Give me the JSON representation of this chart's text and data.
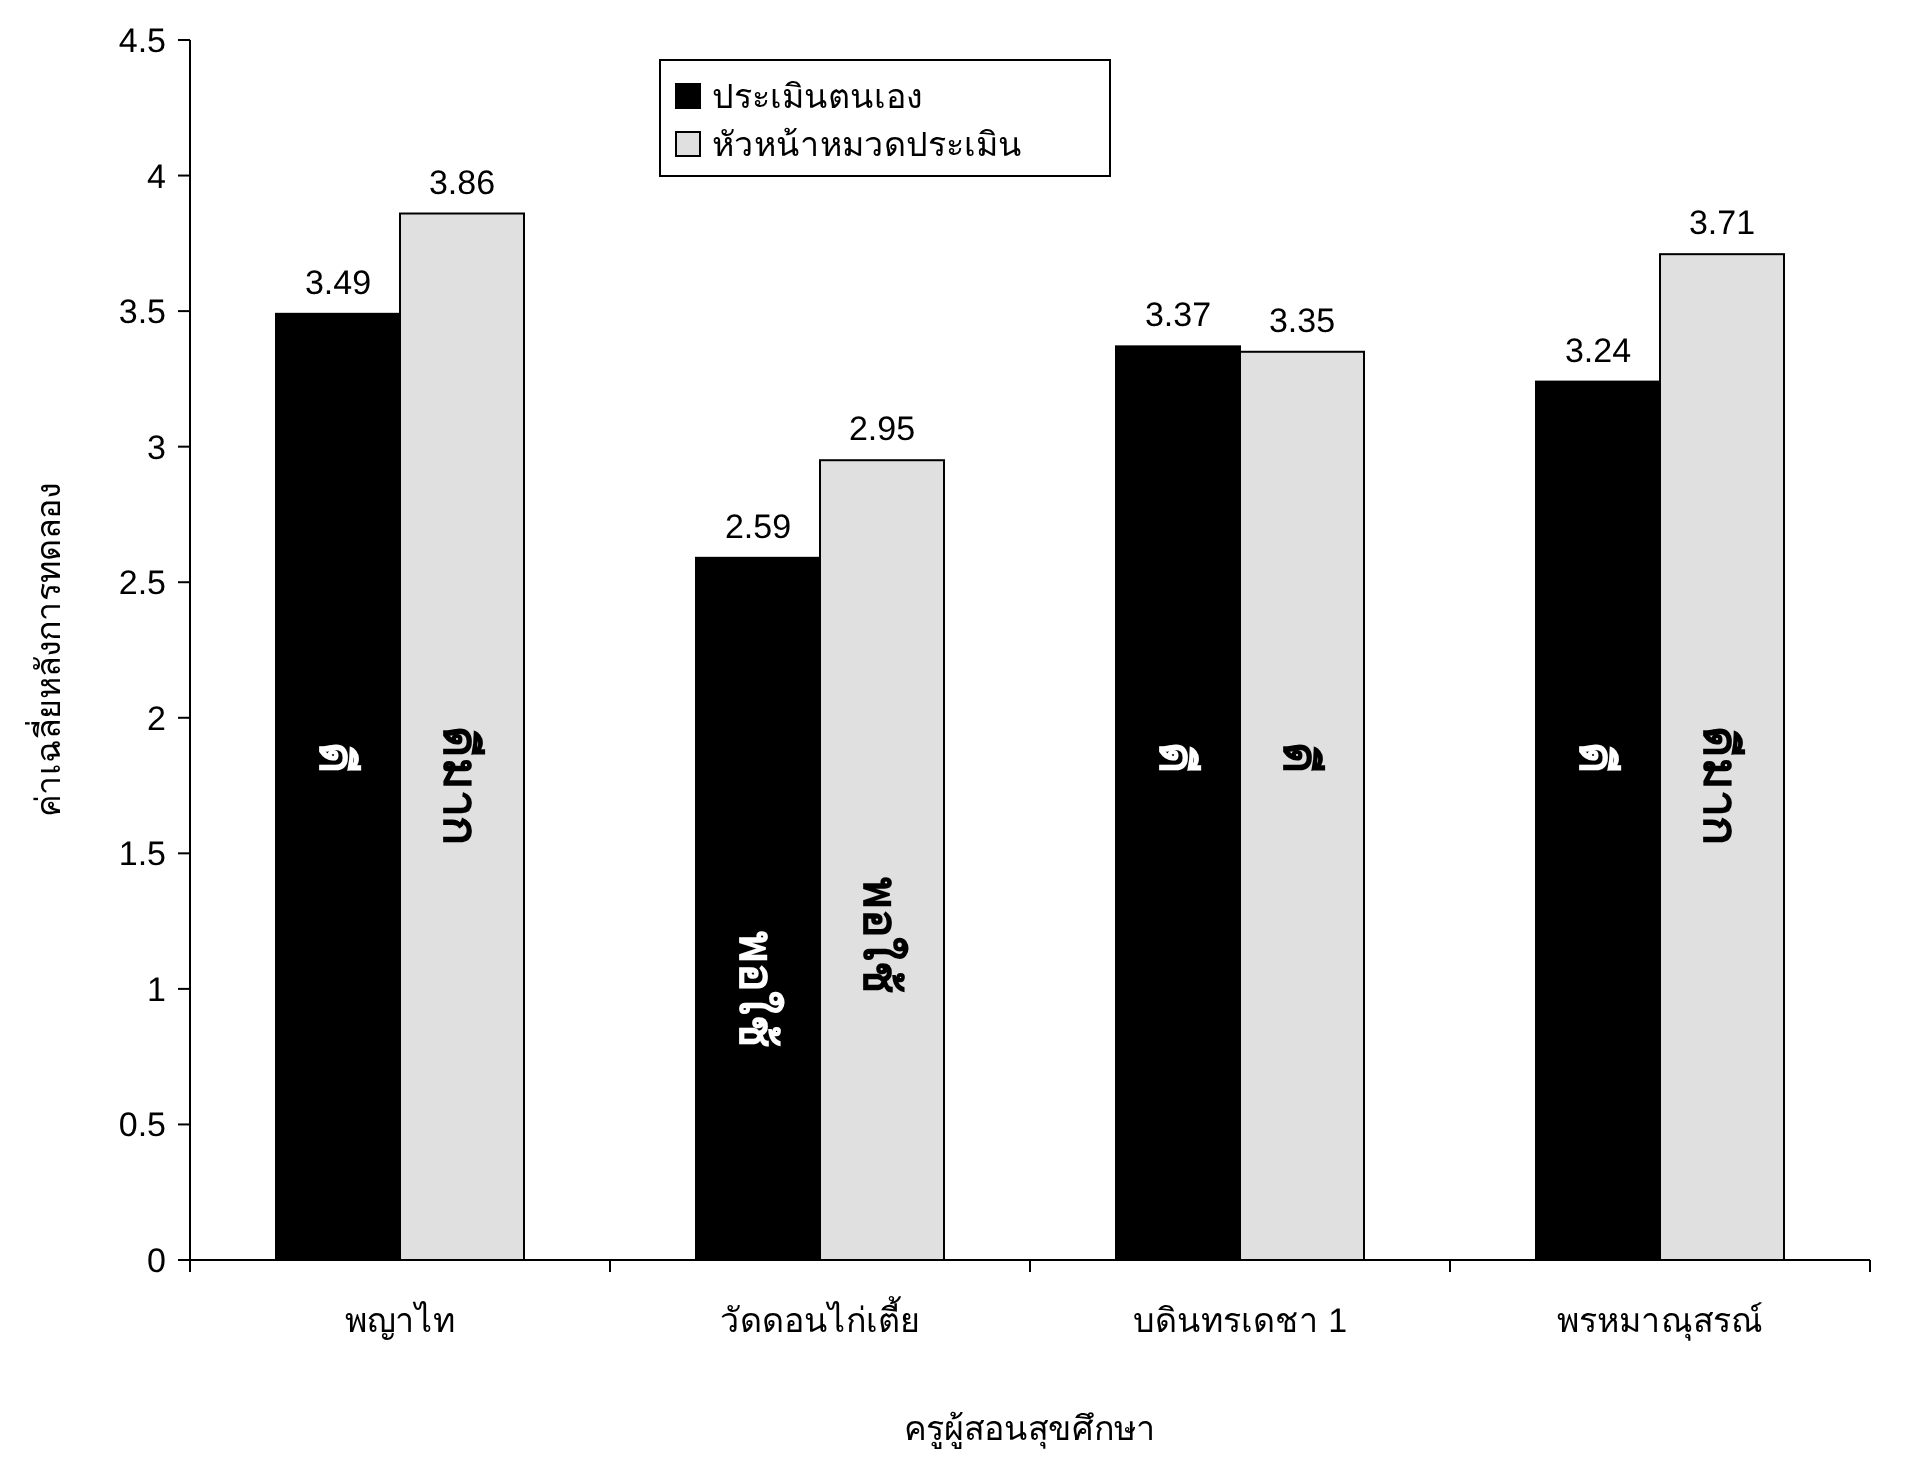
{
  "chart_data": {
    "type": "bar",
    "xlabel": "ครูผู้สอนสุขศึกษา",
    "ylabel": "ค่าเฉลี่ยหลังการทดลอง",
    "categories": [
      "พญาไท",
      "วัดดอนไก่เตี้ย",
      "บดินทรเดชา 1",
      "พรหมาณุสรณ์"
    ],
    "series": [
      {
        "name": "ประเมินตนเอง",
        "color": "#000000",
        "values": [
          3.49,
          2.59,
          3.37,
          3.24
        ]
      },
      {
        "name": "หัวหน้าหมวดประเมิน",
        "color": "#e0e0e0",
        "values": [
          3.86,
          2.95,
          3.35,
          3.71
        ]
      }
    ],
    "ylim": [
      0,
      4.5
    ],
    "yticks": [
      0,
      0.5,
      1,
      1.5,
      2,
      2.5,
      3,
      3.5,
      4,
      4.5
    ],
    "data_labels": true,
    "legend": "top",
    "grid": false,
    "annotations": [
      {
        "text": "ดี",
        "x": "พญาไท",
        "y": 1.85
      },
      {
        "text": "ดีมาก",
        "x": "พญาไท",
        "y": 1.75
      },
      {
        "text": "พอใช้",
        "x": "วัดดอนไก่เตี้ย",
        "y": 1.0
      },
      {
        "text": "พอใช้",
        "x": "วัดดอนไก่เตี้ย",
        "y": 1.2
      },
      {
        "text": "ดี",
        "x": "บดินทรเดชา 1",
        "y": 1.85
      },
      {
        "text": "ดี",
        "x": "บดินทรเดชา 1",
        "y": 1.85
      },
      {
        "text": "ดี",
        "x": "พรหมาณุสรณ์",
        "y": 1.85
      },
      {
        "text": "ดีมาก",
        "x": "พรหมาณุสรณ์",
        "y": 1.75
      }
    ]
  }
}
